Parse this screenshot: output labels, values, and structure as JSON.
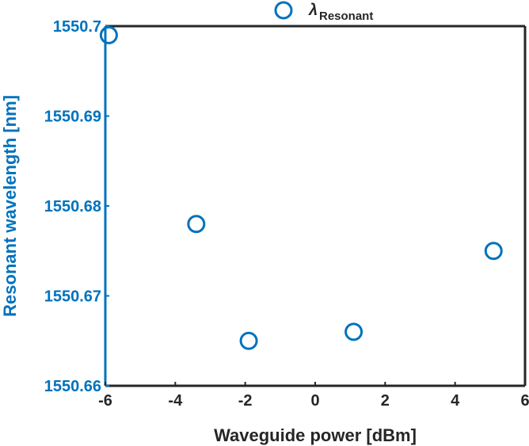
{
  "chart_data": {
    "type": "scatter",
    "xlabel": "Waveguide power [dBm]",
    "ylabel": "Resonant wavelength [nm]",
    "xlim": [
      -6,
      6
    ],
    "ylim": [
      1550.66,
      1550.7
    ],
    "x_ticks": [
      "-6",
      "-4",
      "-2",
      "0",
      "2",
      "4",
      "6"
    ],
    "y_ticks": [
      "1550.66",
      "1550.67",
      "1550.68",
      "1550.69",
      "1550.7"
    ],
    "legend": {
      "symbol": "λ",
      "subscript": "Resonant",
      "placement": "top"
    },
    "series": [
      {
        "marker": "open-circle",
        "color": "#0072BD",
        "points": [
          {
            "x": -5.9,
            "y": 1550.699
          },
          {
            "x": -3.4,
            "y": 1550.678
          },
          {
            "x": -1.9,
            "y": 1550.665
          },
          {
            "x": 1.1,
            "y": 1550.666
          },
          {
            "x": 5.1,
            "y": 1550.675
          }
        ]
      }
    ],
    "grid": false,
    "colors": {
      "y_axis": "#0072BD",
      "x_axis": "#000000"
    }
  }
}
